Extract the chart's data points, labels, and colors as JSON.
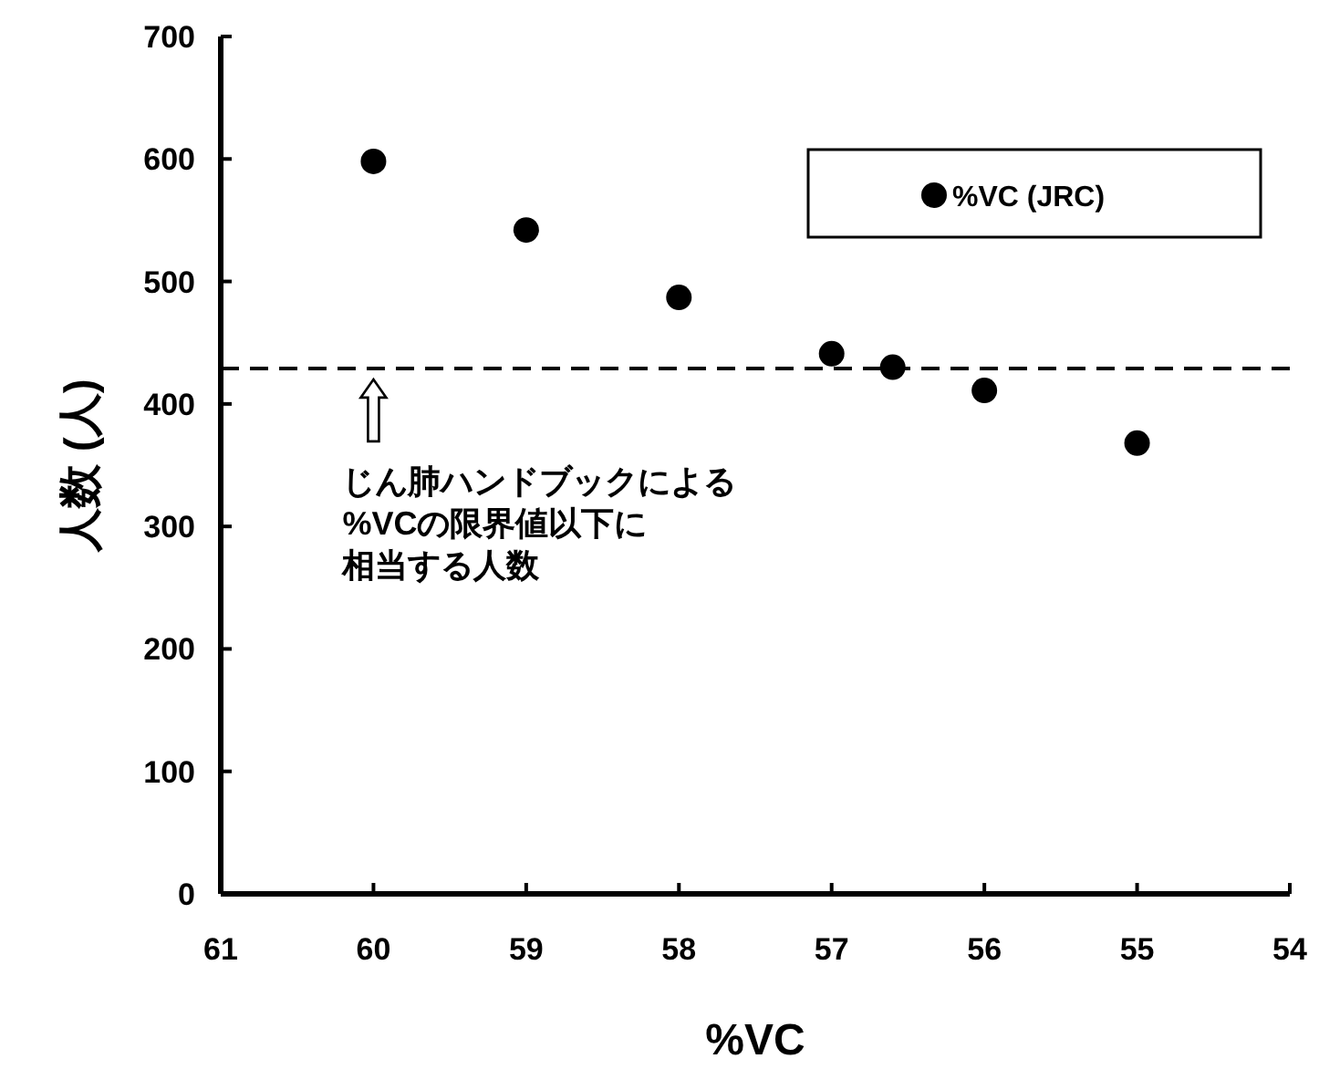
{
  "chart_data": {
    "type": "scatter",
    "xlabel": "%VC",
    "ylabel": "人数 (人)",
    "x": [
      60,
      59,
      58,
      57,
      56.6,
      56,
      55
    ],
    "series": [
      {
        "name": "%VC (JRC)",
        "color": "#000000",
        "values": [
          598,
          542,
          487,
          441,
          430,
          411,
          368
        ]
      }
    ],
    "xlim": [
      61,
      54
    ],
    "xticks": [
      61,
      60,
      59,
      58,
      57,
      56,
      55,
      54
    ],
    "ylim": [
      0,
      700
    ],
    "yticks": [
      0,
      100,
      200,
      300,
      400,
      500,
      600,
      700
    ],
    "ref_lines": [
      {
        "axis": "y",
        "value": 429,
        "color": "#000000",
        "line_style": "dashed"
      }
    ],
    "annotations": [
      {
        "text": "じん肺ハンドブックによる",
        "x": 60,
        "y": 429
      },
      "%VCの限界値以下に",
      "相当する人数"
    ],
    "marker": "circle",
    "legend": "top right",
    "grid": false
  }
}
